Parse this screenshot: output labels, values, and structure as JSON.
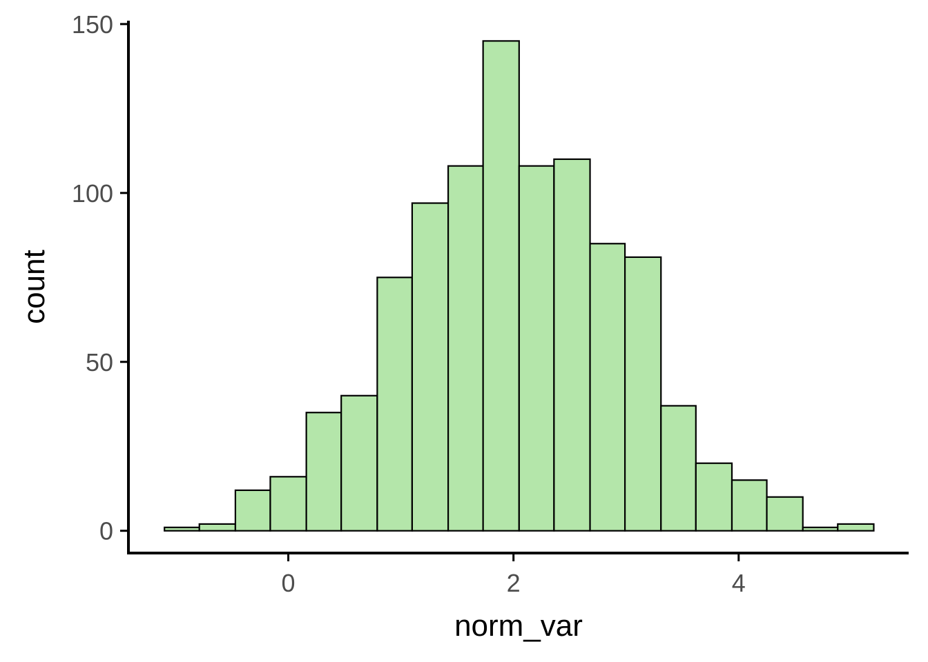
{
  "chart_data": {
    "type": "bar",
    "subtype": "histogram",
    "bins": [
      {
        "x0": -1.1,
        "x1": -0.79,
        "count": 1
      },
      {
        "x0": -0.79,
        "x1": -0.47,
        "count": 2
      },
      {
        "x0": -0.47,
        "x1": -0.16,
        "count": 12
      },
      {
        "x0": -0.16,
        "x1": 0.16,
        "count": 16
      },
      {
        "x0": 0.16,
        "x1": 0.47,
        "count": 35
      },
      {
        "x0": 0.47,
        "x1": 0.79,
        "count": 40
      },
      {
        "x0": 0.79,
        "x1": 1.1,
        "count": 75
      },
      {
        "x0": 1.1,
        "x1": 1.42,
        "count": 97
      },
      {
        "x0": 1.42,
        "x1": 1.73,
        "count": 108
      },
      {
        "x0": 1.73,
        "x1": 2.05,
        "count": 145
      },
      {
        "x0": 2.05,
        "x1": 2.36,
        "count": 108
      },
      {
        "x0": 2.36,
        "x1": 2.68,
        "count": 110
      },
      {
        "x0": 2.68,
        "x1": 2.99,
        "count": 85
      },
      {
        "x0": 2.99,
        "x1": 3.31,
        "count": 81
      },
      {
        "x0": 3.31,
        "x1": 3.62,
        "count": 37
      },
      {
        "x0": 3.62,
        "x1": 3.94,
        "count": 20
      },
      {
        "x0": 3.94,
        "x1": 4.25,
        "count": 15
      },
      {
        "x0": 4.25,
        "x1": 4.57,
        "count": 10
      },
      {
        "x0": 4.57,
        "x1": 4.88,
        "count": 1
      },
      {
        "x0": 4.88,
        "x1": 5.2,
        "count": 2
      }
    ],
    "xlabel": "norm_var",
    "ylabel": "count",
    "xlim": [
      -1.42,
      5.51
    ],
    "ylim": [
      -7,
      151
    ],
    "xticks": [
      0,
      2,
      4
    ],
    "yticks": [
      0,
      50,
      100,
      150
    ],
    "grid": false,
    "colors": {
      "fill": "#b4e6aa",
      "outline": "#000000"
    }
  }
}
